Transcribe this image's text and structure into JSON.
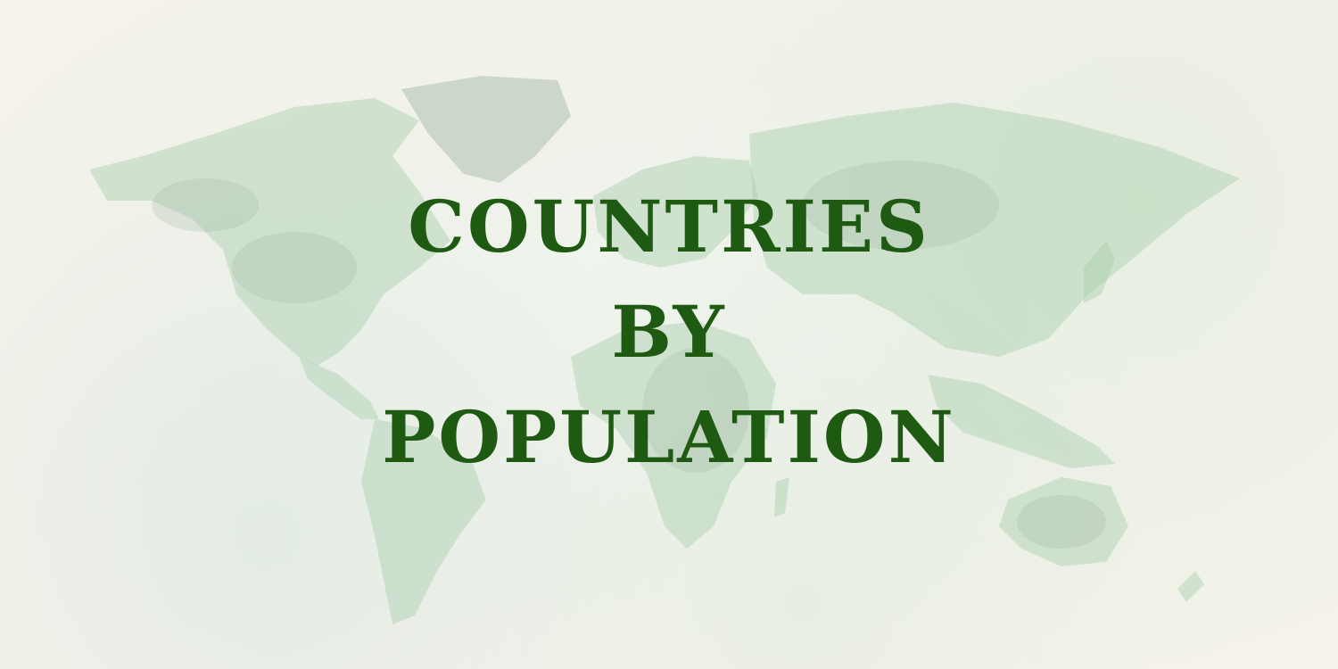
{
  "title": {
    "lines": [
      "COUNTRIES",
      "BY",
      "POPULATION"
    ]
  },
  "colors": {
    "title_text": "#1f5a12",
    "background": "#f3f2ea",
    "map_land_primary": "#a9cfae",
    "map_land_secondary": "#9fb3a5"
  },
  "background": {
    "image": "watercolor-world-map"
  }
}
